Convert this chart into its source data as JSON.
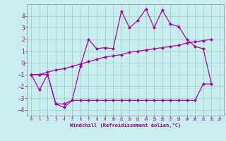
{
  "xlabel": "Windchill (Refroidissement éolien,°C)",
  "x_values": [
    0,
    1,
    2,
    3,
    4,
    5,
    6,
    7,
    8,
    9,
    10,
    11,
    12,
    13,
    14,
    15,
    16,
    17,
    18,
    19,
    20,
    21,
    22
  ],
  "line1_y": [
    -1.0,
    -2.3,
    -1.0,
    -3.5,
    -3.8,
    -3.2,
    -0.3,
    2.0,
    1.2,
    1.3,
    1.2,
    4.4,
    3.0,
    3.6,
    4.6,
    3.0,
    4.5,
    3.3,
    3.1,
    2.0,
    1.4,
    1.2,
    -1.8
  ],
  "line2_y": [
    -1.0,
    -1.0,
    -0.8,
    -0.6,
    -0.5,
    -0.3,
    -0.1,
    0.1,
    0.3,
    0.5,
    0.6,
    0.7,
    0.9,
    1.0,
    1.1,
    1.2,
    1.3,
    1.4,
    1.5,
    1.7,
    1.8,
    1.9,
    2.0
  ],
  "line3_y": [
    -1.0,
    -1.0,
    -1.0,
    -3.5,
    -3.5,
    -3.2,
    -3.2,
    -3.2,
    -3.2,
    -3.2,
    -3.2,
    -3.2,
    -3.2,
    -3.2,
    -3.2,
    -3.2,
    -3.2,
    -3.2,
    -3.2,
    -3.2,
    -3.2,
    -1.8,
    -1.8
  ],
  "ylim": [
    -4.5,
    5.0
  ],
  "xlim": [
    -0.5,
    23.5
  ],
  "yticks": [
    -4,
    -3,
    -2,
    -1,
    0,
    1,
    2,
    3,
    4
  ],
  "xticks": [
    0,
    1,
    2,
    3,
    4,
    5,
    6,
    7,
    8,
    9,
    10,
    11,
    12,
    13,
    14,
    15,
    16,
    17,
    18,
    19,
    20,
    21,
    22,
    23
  ],
  "line_color": "#aa00aa",
  "bg_color": "#c8eef0",
  "grid_color": "#99ccbb",
  "font_color": "#880088",
  "spine_color": "#888888"
}
